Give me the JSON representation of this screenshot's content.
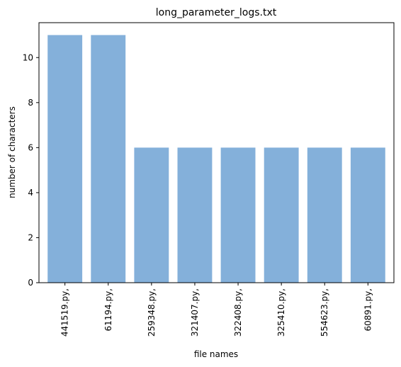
{
  "chart_data": {
    "type": "bar",
    "title": "long_parameter_logs.txt",
    "xlabel": "file names",
    "ylabel": "number of characters",
    "categories": [
      "441519.py,",
      "61194.py,",
      "259348.py,",
      "321407.py,",
      "322408.py,",
      "325410.py,",
      "554623.py,",
      "60891.py,"
    ],
    "values": [
      11,
      11,
      6,
      6,
      6,
      6,
      6,
      6
    ],
    "ylim": [
      0,
      11.55
    ],
    "yticks": [
      0,
      2,
      4,
      6,
      8,
      10
    ],
    "bar_color": "#84b0da",
    "grid": false,
    "legend": "none"
  }
}
